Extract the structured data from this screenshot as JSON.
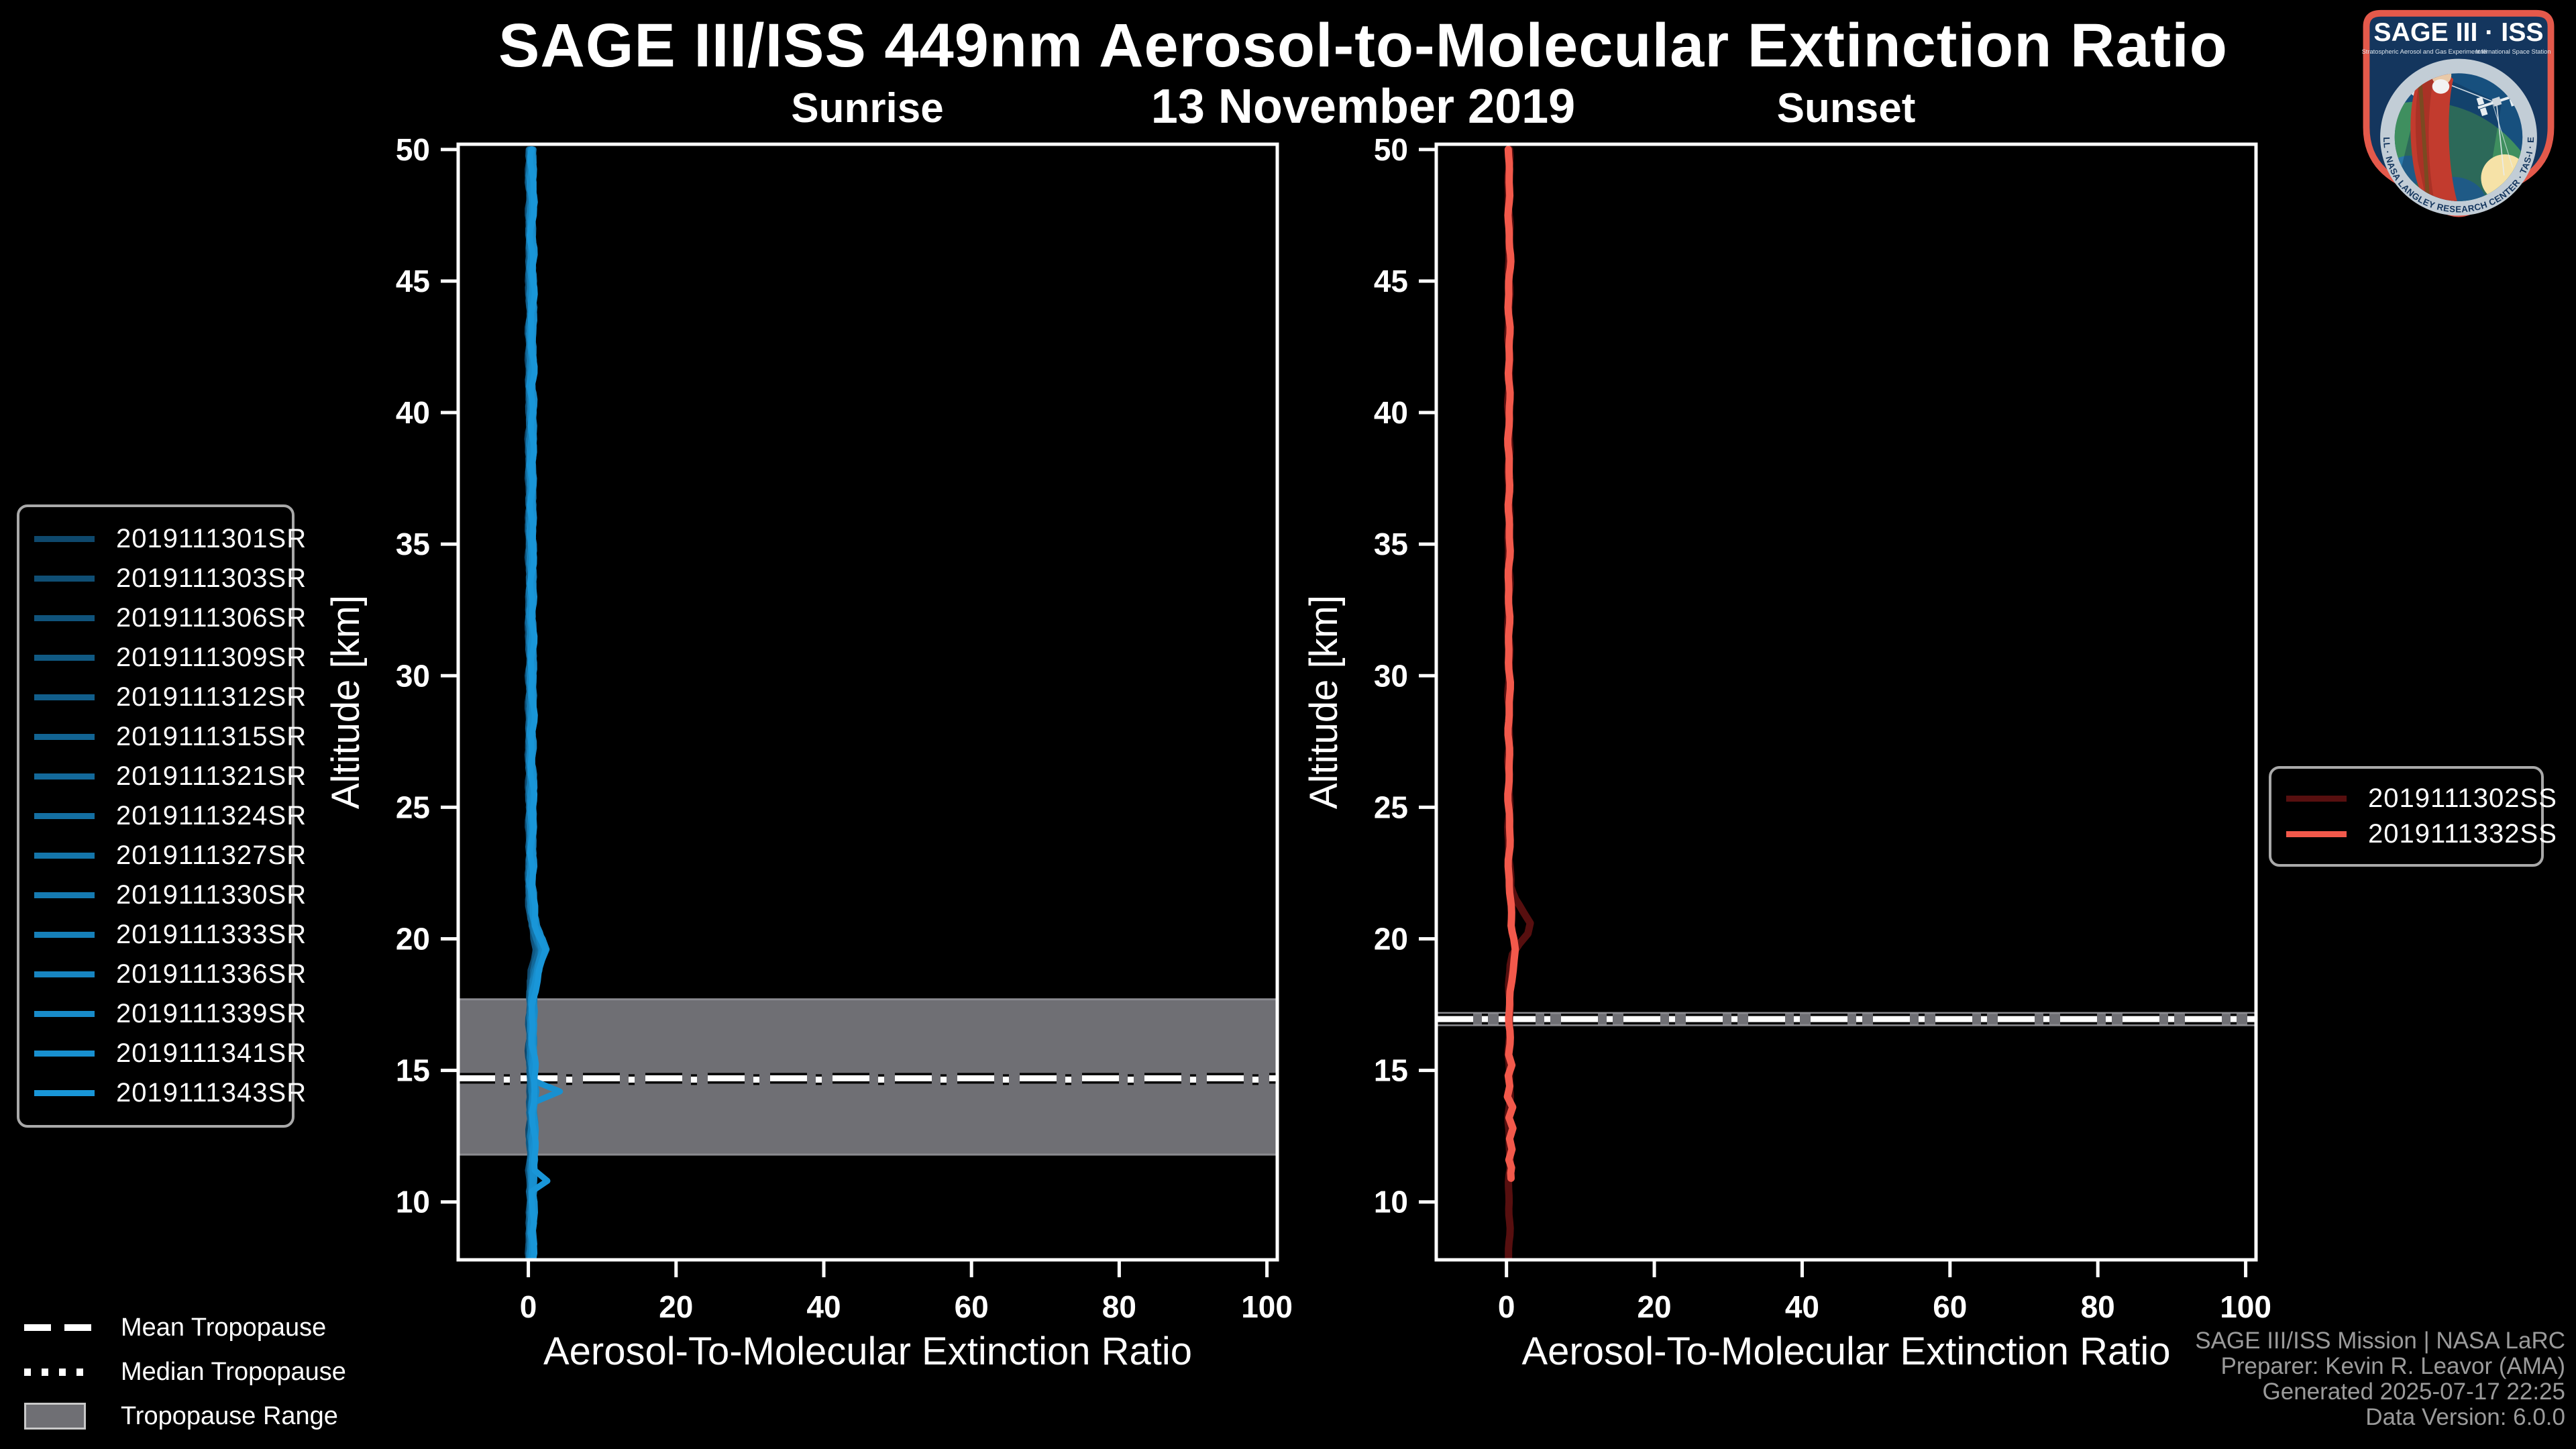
{
  "header": {
    "title": "SAGE III/ISS 449nm Aerosol-to-Molecular Extinction Ratio",
    "subtitle": "13 November 2019"
  },
  "colors": {
    "background": "#000000",
    "axis": "#ffffff",
    "tick_label": "#ffffff",
    "tropopause_band": "#6f6f74",
    "tropopause_band_edge": "#8b8b90",
    "tropopause_line": "#ffffff",
    "legend_border": "#a9a9a9",
    "footer_text": "#9b9b9b",
    "logo_border": "#e4594b",
    "logo_field": "#14365e",
    "sunrise_dark": "#0e486c",
    "sunrise_bright": "#1996d8",
    "sunset_dark": "#570f0f",
    "sunset_bright": "#f2594b"
  },
  "tropopause_legend": {
    "mean_label": "Mean Tropopause",
    "median_label": "Median Tropopause",
    "range_label": "Tropopause Range"
  },
  "footer": {
    "lines": [
      "SAGE III/ISS Mission | NASA LaRC",
      "Preparer: Kevin R. Leavor (AMA)",
      "Generated 2025-07-17 22:25",
      "Data Version: 6.0.0"
    ]
  },
  "logo": {
    "title": "SAGE III · ISS",
    "subtitle_left": "Stratospheric Aerosol and Gas Experiment III",
    "subtitle_right": "International Space Station",
    "ring_text": "BALL · NASA LANGLEY RESEARCH CENTER · TAS-I · ESA"
  },
  "chart_data": [
    {
      "type": "line",
      "panel": "sunrise",
      "title": "Sunrise",
      "xlabel": "Aerosol-To-Molecular Extinction Ratio",
      "ylabel": "Altitude [km]",
      "xlim": [
        -9.5,
        101.4
      ],
      "ylim": [
        7.8,
        50.2
      ],
      "xticks": [
        0,
        20,
        40,
        60,
        80,
        100
      ],
      "yticks": [
        10,
        15,
        20,
        25,
        30,
        35,
        40,
        45,
        50
      ],
      "grid": false,
      "legend_position": "left-outside",
      "tropopause": {
        "mean_km": 14.7,
        "median_km": 14.65,
        "range_km": [
          11.8,
          17.7
        ]
      },
      "series": [
        {
          "name": "2019111301SR",
          "color": "#0e486c"
        },
        {
          "name": "2019111303SR",
          "color": "#0f4e74"
        },
        {
          "name": "2019111306SR",
          "color": "#10537b"
        },
        {
          "name": "2019111309SR",
          "color": "#105983"
        },
        {
          "name": "2019111312SR",
          "color": "#115e8b"
        },
        {
          "name": "2019111315SR",
          "color": "#126493"
        },
        {
          "name": "2019111321SR",
          "color": "#13699a"
        },
        {
          "name": "2019111324SR",
          "color": "#146fa2"
        },
        {
          "name": "2019111327SR",
          "color": "#1475aa"
        },
        {
          "name": "2019111330SR",
          "color": "#157ab1"
        },
        {
          "name": "2019111333SR",
          "color": "#1680b9"
        },
        {
          "name": "2019111336SR",
          "color": "#1785c1"
        },
        {
          "name": "2019111339SR",
          "color": "#188bc9"
        },
        {
          "name": "2019111341SR",
          "color": "#1890d0"
        },
        {
          "name": "2019111343SR",
          "color": "#1996d8"
        }
      ],
      "base_profile": [
        [
          50,
          0.4
        ],
        [
          49,
          0.3
        ],
        [
          48,
          0.45
        ],
        [
          47,
          0.3
        ],
        [
          46,
          0.4
        ],
        [
          45,
          0.35
        ],
        [
          44,
          0.45
        ],
        [
          43,
          0.3
        ],
        [
          42,
          0.4
        ],
        [
          41,
          0.3
        ],
        [
          40,
          0.45
        ],
        [
          39,
          0.35
        ],
        [
          38,
          0.3
        ],
        [
          37,
          0.4
        ],
        [
          36,
          0.3
        ],
        [
          35,
          0.35
        ],
        [
          34,
          0.4
        ],
        [
          33,
          0.35
        ],
        [
          32,
          0.3
        ],
        [
          31,
          0.4
        ],
        [
          30,
          0.35
        ],
        [
          29,
          0.4
        ],
        [
          28,
          0.35
        ],
        [
          27,
          0.3
        ],
        [
          26,
          0.4
        ],
        [
          25,
          0.35
        ],
        [
          24,
          0.4
        ],
        [
          23,
          0.35
        ],
        [
          22,
          0.3
        ],
        [
          21.5,
          0.4
        ],
        [
          21,
          0.55
        ],
        [
          20.5,
          0.8
        ],
        [
          20,
          1.3
        ],
        [
          19.6,
          1.7
        ],
        [
          19.2,
          1.4
        ],
        [
          18.8,
          1.0
        ],
        [
          18.4,
          0.7
        ],
        [
          18,
          0.55
        ],
        [
          17.5,
          0.45
        ],
        [
          17,
          0.4
        ],
        [
          16.5,
          0.45
        ],
        [
          16,
          0.4
        ],
        [
          15.5,
          0.45
        ],
        [
          15,
          0.5
        ],
        [
          14.6,
          0.55
        ],
        [
          14.2,
          0.6
        ],
        [
          13.8,
          0.55
        ],
        [
          13.4,
          0.5
        ],
        [
          13,
          0.55
        ],
        [
          12.5,
          0.5
        ],
        [
          12,
          0.55
        ],
        [
          11.6,
          0.5
        ],
        [
          11.2,
          0.45
        ],
        [
          10.8,
          0.5
        ],
        [
          10.4,
          0.45
        ],
        [
          10,
          0.5
        ],
        [
          9.6,
          0.4
        ],
        [
          9.2,
          0.45
        ],
        [
          8.8,
          0.35
        ],
        [
          8.4,
          0.4
        ],
        [
          7.7,
          0.35
        ]
      ],
      "features": {
        "bump_alt_km": 19.6,
        "spikes": [
          {
            "series": "2019111341SR",
            "alt_km": 14.25,
            "peak_ratio": 4.2
          },
          {
            "series": "2019111343SR",
            "alt_km": 10.8,
            "peak_ratio": 2.3
          }
        ]
      }
    },
    {
      "type": "line",
      "panel": "sunset",
      "title": "Sunset",
      "xlabel": "Aerosol-To-Molecular Extinction Ratio",
      "ylabel": "Altitude [km]",
      "xlim": [
        -9.5,
        101.4
      ],
      "ylim": [
        7.8,
        50.2
      ],
      "xticks": [
        0,
        20,
        40,
        60,
        80,
        100
      ],
      "yticks": [
        10,
        15,
        20,
        25,
        30,
        35,
        40,
        45,
        50
      ],
      "grid": false,
      "legend_position": "right-outside",
      "tropopause": {
        "mean_km": 16.95,
        "median_km": 16.95,
        "range_km": [
          16.72,
          17.18
        ]
      },
      "series": [
        {
          "name": "2019111302SS",
          "color": "#570f0f",
          "profile": [
            [
              50,
              0.35
            ],
            [
              48,
              0.3
            ],
            [
              46,
              0.4
            ],
            [
              44,
              0.3
            ],
            [
              42,
              0.35
            ],
            [
              40,
              0.3
            ],
            [
              38,
              0.35
            ],
            [
              36,
              0.3
            ],
            [
              34,
              0.35
            ],
            [
              32,
              0.3
            ],
            [
              30,
              0.35
            ],
            [
              28,
              0.3
            ],
            [
              26,
              0.35
            ],
            [
              24,
              0.3
            ],
            [
              23,
              0.35
            ],
            [
              22.5,
              0.4
            ],
            [
              22,
              0.6
            ],
            [
              21.5,
              1.3
            ],
            [
              21,
              2.4
            ],
            [
              20.6,
              3.3
            ],
            [
              20.2,
              2.8
            ],
            [
              19.8,
              1.6
            ],
            [
              19.4,
              0.8
            ],
            [
              19,
              0.5
            ],
            [
              18,
              0.4
            ],
            [
              17,
              0.35
            ],
            [
              16,
              0.4
            ],
            [
              15,
              0.35
            ],
            [
              14,
              0.4
            ],
            [
              13,
              0.35
            ],
            [
              12,
              0.4
            ],
            [
              11,
              0.35
            ],
            [
              10,
              0.4
            ],
            [
              9,
              0.35
            ],
            [
              7.7,
              0.3
            ]
          ]
        },
        {
          "name": "2019111332SS",
          "color": "#f2594b",
          "profile": [
            [
              50,
              0.4
            ],
            [
              48,
              0.3
            ],
            [
              46,
              0.45
            ],
            [
              44,
              0.3
            ],
            [
              42,
              0.4
            ],
            [
              40,
              0.35
            ],
            [
              38,
              0.3
            ],
            [
              36,
              0.4
            ],
            [
              34,
              0.35
            ],
            [
              32,
              0.3
            ],
            [
              30,
              0.4
            ],
            [
              28,
              0.35
            ],
            [
              26,
              0.3
            ],
            [
              24,
              0.4
            ],
            [
              23,
              0.35
            ],
            [
              22,
              0.4
            ],
            [
              21.5,
              0.5
            ],
            [
              21,
              0.55
            ],
            [
              20.5,
              0.7
            ],
            [
              20,
              1.05
            ],
            [
              19.6,
              1.25
            ],
            [
              19.2,
              1.1
            ],
            [
              18.8,
              0.8
            ],
            [
              18.4,
              0.6
            ],
            [
              18,
              0.5
            ],
            [
              17.5,
              0.45
            ],
            [
              17,
              0.4
            ],
            [
              16.5,
              0.5
            ],
            [
              16,
              0.35
            ],
            [
              15.6,
              0.25
            ],
            [
              15.2,
              0.7
            ],
            [
              14.8,
              0.25
            ],
            [
              14.4,
              0.6
            ],
            [
              14,
              0.2
            ],
            [
              13.6,
              0.75
            ],
            [
              13.2,
              0.3
            ],
            [
              12.8,
              0.8
            ],
            [
              12.4,
              0.35
            ],
            [
              12,
              0.85
            ],
            [
              11.6,
              0.45
            ],
            [
              11.3,
              0.7
            ],
            [
              11.1,
              0.55
            ],
            [
              10.9,
              0.6
            ]
          ]
        }
      ]
    }
  ]
}
